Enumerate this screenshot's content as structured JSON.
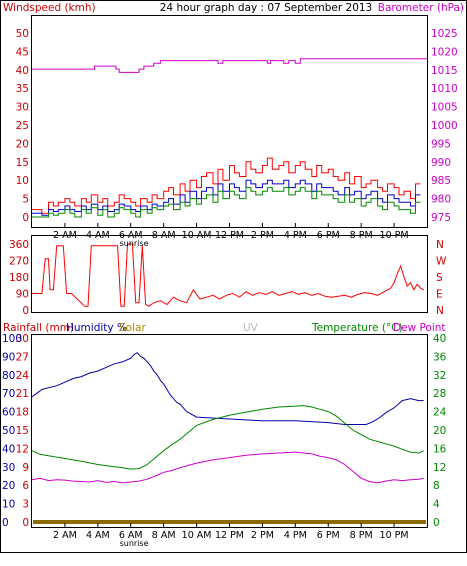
{
  "title": "24 hour graph day : 07 September 2013",
  "colors": {
    "frame": "#000000",
    "wind_axis": "#cc0000",
    "baro_axis": "#cc00cc",
    "gust": "#ff0000",
    "avg_wind": "#0000cc",
    "wind_green": "#008800",
    "rain": "#cc0000",
    "humidity": "#0000aa",
    "solar": "#aa8800",
    "uv": "#bbbbbb",
    "temperature": "#008800",
    "dewpoint": "#cc00cc",
    "rain_bar": "#8b6b00"
  },
  "chart_data": [
    {
      "type": "line",
      "title": "24 hour graph day : 07 September 2013",
      "ylabel_left": "Windspeed (kmh)",
      "ylabel_right": "Barometer (hPa)",
      "yticks_left": [
        "0",
        "5",
        "10",
        "15",
        "20",
        "25",
        "30",
        "35",
        "40",
        "45",
        "50"
      ],
      "yticks_right": [
        "975",
        "980",
        "985",
        "990",
        "995",
        "1000",
        "1005",
        "1010",
        "1015",
        "1020",
        "1025"
      ],
      "ylim_left": [
        0,
        50
      ],
      "ylim_right": [
        975,
        1025
      ],
      "xticks": [
        "2 AM",
        "4 AM",
        "6 AM",
        "8 AM",
        "10 AM",
        "12 PM",
        "2 PM",
        "4 PM",
        "6 PM",
        "8 PM",
        "10 PM"
      ],
      "x_annotation": "sunrise",
      "series": [
        {
          "axis": "right",
          "step": true,
          "x": [
            0,
            3.6,
            3.8,
            5.1,
            5.3,
            6.5,
            6.8,
            7.4,
            7.8,
            11.3,
            11.6,
            14.3,
            14.5,
            15.3,
            15.6,
            16,
            16.3,
            23.8
          ],
          "values": [
            1015.2,
            1015.2,
            1016,
            1015.2,
            1014.3,
            1015.2,
            1016,
            1016.8,
            1017.5,
            1016.8,
            1017.5,
            1016.8,
            1017.5,
            1016.8,
            1017.5,
            1016.8,
            1018,
            1018
          ]
        },
        {
          "name": "",
          "axis": "left",
          "step": true,
          "x": [
            0,
            0.6,
            1,
            1.3,
            1.6,
            2,
            2.3,
            2.6,
            3,
            3.3,
            3.6,
            4,
            4.3,
            4.6,
            5,
            5.3,
            5.6,
            6,
            6.3,
            6.6,
            7,
            7.3,
            7.6,
            8,
            8.3,
            8.6,
            9,
            9.3,
            9.6,
            10,
            10.3,
            10.6,
            11,
            11.3,
            11.6,
            12,
            12.3,
            12.6,
            13,
            13.3,
            13.6,
            14,
            14.3,
            14.6,
            15,
            15.3,
            15.6,
            16,
            16.3,
            16.6,
            17,
            17.3,
            17.6,
            18,
            18.3,
            18.6,
            19,
            19.3,
            19.6,
            20,
            20.3,
            20.6,
            21,
            21.3,
            21.6,
            22,
            22.3,
            22.6,
            23,
            23.3
          ],
          "values": [
            2,
            1,
            4,
            3,
            4,
            5,
            4,
            3,
            5,
            4,
            6,
            4,
            5,
            3,
            4,
            6,
            5,
            4,
            3,
            5,
            4,
            6,
            5,
            7,
            8,
            6,
            9,
            7,
            10,
            8,
            11,
            12,
            9,
            13,
            10,
            14,
            12,
            11,
            15,
            13,
            12,
            14,
            16,
            13,
            14,
            15,
            12,
            14,
            15,
            13,
            11,
            14,
            12,
            13,
            11,
            10,
            12,
            9,
            11,
            8,
            9,
            10,
            8,
            7,
            9,
            8,
            6,
            7,
            5,
            9
          ]
        },
        {
          "name": "",
          "axis": "left",
          "step": true,
          "x": [
            0,
            0.6,
            1,
            1.3,
            1.6,
            2,
            2.3,
            2.6,
            3,
            3.3,
            3.6,
            4,
            4.3,
            4.6,
            5,
            5.3,
            5.6,
            6,
            6.3,
            6.6,
            7,
            7.3,
            7.6,
            8,
            8.3,
            8.6,
            9,
            9.3,
            9.6,
            10,
            10.3,
            10.6,
            11,
            11.3,
            11.6,
            12,
            12.3,
            12.6,
            13,
            13.3,
            13.6,
            14,
            14.3,
            14.6,
            15,
            15.3,
            15.6,
            16,
            16.3,
            16.6,
            17,
            17.3,
            17.6,
            18,
            18.3,
            18.6,
            19,
            19.3,
            19.6,
            20,
            20.3,
            20.6,
            21,
            21.3,
            21.6,
            22,
            22.3,
            22.6,
            23,
            23.3
          ],
          "values": [
            1,
            0.5,
            2,
            1.5,
            2,
            3,
            2,
            1.5,
            3,
            2,
            3.5,
            2,
            3,
            1.5,
            2,
            3.5,
            3,
            2,
            1.5,
            3,
            2,
            3.5,
            3,
            4,
            5,
            3.5,
            6,
            4,
            7,
            5,
            7,
            8,
            6,
            9,
            7,
            9,
            8,
            7,
            10,
            9,
            8,
            9,
            10,
            9,
            9,
            10,
            8,
            9,
            10,
            9,
            7,
            9,
            8,
            8,
            7,
            6,
            8,
            6,
            7,
            5,
            6,
            7,
            5,
            4,
            6,
            5,
            4,
            4,
            3,
            6
          ]
        },
        {
          "name": "",
          "axis": "left",
          "step": true,
          "x": [
            0,
            0.6,
            1,
            1.3,
            1.6,
            2,
            2.3,
            2.6,
            3,
            3.3,
            3.6,
            4,
            4.3,
            4.6,
            5,
            5.3,
            5.6,
            6,
            6.3,
            6.6,
            7,
            7.3,
            7.6,
            8,
            8.3,
            8.6,
            9,
            9.3,
            9.6,
            10,
            10.3,
            10.6,
            11,
            11.3,
            11.6,
            12,
            12.3,
            12.6,
            13,
            13.3,
            13.6,
            14,
            14.3,
            14.6,
            15,
            15.3,
            15.6,
            16,
            16.3,
            16.6,
            17,
            17.3,
            17.6,
            18,
            18.3,
            18.6,
            19,
            19.3,
            19.6,
            20,
            20.3,
            20.6,
            21,
            21.3,
            21.6,
            22,
            22.3,
            22.6,
            23,
            23.3
          ],
          "values": [
            0,
            0,
            1,
            0.5,
            1,
            2,
            1,
            0,
            2,
            1,
            2.5,
            0.5,
            2,
            0,
            1,
            2.5,
            2,
            1,
            0,
            2,
            1,
            2.5,
            2,
            3,
            3.5,
            2,
            4,
            3,
            5,
            3.5,
            5,
            6,
            4,
            7,
            5,
            7,
            6,
            5,
            8,
            7,
            6,
            7,
            8,
            7,
            7,
            8,
            6,
            7,
            8,
            7,
            5,
            7,
            6,
            6,
            5,
            4,
            6,
            4,
            5,
            3,
            4,
            5,
            3,
            2,
            4,
            3,
            2,
            2,
            1,
            4
          ]
        }
      ]
    },
    {
      "type": "line",
      "title": "",
      "yticks_left": [
        "0",
        "90",
        "180",
        "270",
        "360"
      ],
      "yticks_right": [
        "N",
        "E",
        "S",
        "W",
        "N"
      ],
      "ylim_left": [
        0,
        360
      ],
      "series": [
        {
          "name": "",
          "x": [
            0,
            0.6,
            0.8,
            1,
            1.1,
            1.3,
            1.5,
            1.9,
            2.1,
            2.4,
            3.2,
            3.4,
            3.6,
            3.8,
            4.1,
            5.2,
            5.4,
            5.6,
            5.8,
            6.1,
            6.3,
            6.5,
            6.7,
            6.9,
            7.1,
            7.4,
            7.8,
            8.2,
            8.6,
            9,
            9.4,
            9.8,
            10.2,
            10.6,
            11,
            11.4,
            11.8,
            12.2,
            12.6,
            13,
            13.4,
            13.8,
            14.2,
            14.6,
            15,
            15.4,
            15.8,
            16.2,
            16.6,
            17,
            17.4,
            17.8,
            18.2,
            18.6,
            19,
            19.4,
            19.8,
            20.2,
            20.6,
            21,
            21.4,
            21.8,
            22,
            22.2,
            22.4,
            22.6,
            22.8,
            23,
            23.2,
            23.4,
            23.6,
            23.8
          ],
          "values": [
            90,
            90,
            280,
            280,
            110,
            110,
            350,
            350,
            90,
            90,
            20,
            20,
            350,
            350,
            350,
            350,
            20,
            20,
            360,
            360,
            40,
            40,
            350,
            30,
            20,
            40,
            50,
            30,
            70,
            50,
            40,
            110,
            60,
            70,
            80,
            60,
            80,
            90,
            70,
            100,
            80,
            95,
            85,
            100,
            80,
            90,
            100,
            85,
            95,
            80,
            90,
            75,
            70,
            75,
            80,
            70,
            85,
            95,
            90,
            80,
            100,
            120,
            150,
            200,
            240,
            180,
            130,
            150,
            110,
            140,
            120,
            110
          ]
        }
      ]
    },
    {
      "type": "line",
      "title": "",
      "legend_labels": {
        "rain": "Rainfall (mm)",
        "humidity": "Humidity %",
        "solar": "Solar",
        "uv": "UV",
        "temperature": "Temperature (°C)",
        "dewpoint": "Dew Point"
      },
      "yticks_rain": [
        "0",
        "3",
        "6",
        "9",
        "12",
        "15",
        "18",
        "21",
        "24",
        "27",
        "30"
      ],
      "yticks_humidity": [
        "0",
        "10",
        "20",
        "30",
        "40",
        "50",
        "60",
        "70",
        "80",
        "90",
        "100"
      ],
      "yticks_temp": [
        "0",
        "4",
        "8",
        "12",
        "16",
        "20",
        "24",
        "28",
        "32",
        "36",
        "40"
      ],
      "ylim_humidity": [
        0,
        100
      ],
      "ylim_temp": [
        0,
        40
      ],
      "ylim_rain": [
        0,
        30
      ],
      "series": [
        {
          "name": "Humidity %",
          "axis": "humidity",
          "x": [
            0,
            0.3,
            0.6,
            1,
            1.5,
            2,
            2.5,
            3,
            3.5,
            4,
            4.5,
            5,
            5.5,
            6,
            6.2,
            6.4,
            6.6,
            6.8,
            7,
            7.2,
            7.4,
            7.6,
            7.8,
            8,
            8.2,
            8.4,
            8.6,
            8.8,
            9,
            9.2,
            9.4,
            10,
            12,
            14,
            16,
            18,
            19,
            20,
            20.3,
            20.6,
            21,
            21.3,
            21.6,
            22,
            22.5,
            23,
            23.5,
            23.8
          ],
          "values": [
            68,
            70,
            72,
            73,
            74,
            76,
            78,
            79,
            81,
            82,
            84,
            86,
            87,
            89,
            91,
            92,
            90,
            89,
            87,
            85,
            82,
            80,
            77,
            75,
            72,
            69,
            67,
            65,
            64,
            62,
            60,
            57,
            56,
            55,
            55,
            54,
            53,
            53,
            53,
            54,
            56,
            58,
            60,
            62,
            66,
            67,
            66,
            66
          ]
        },
        {
          "name": "Temperature (°C)",
          "axis": "temp",
          "x": [
            0,
            0.5,
            1,
            2,
            3,
            4,
            5,
            5.5,
            6,
            6.5,
            7,
            7.5,
            8,
            8.5,
            9,
            9.5,
            10,
            11,
            12,
            13,
            14,
            15,
            16,
            16.5,
            17,
            17.5,
            18,
            18.5,
            19,
            19.5,
            20,
            20.5,
            21,
            21.5,
            22,
            22.5,
            23,
            23.5,
            23.8
          ],
          "values": [
            15.5,
            14.7,
            14.4,
            13.8,
            13.2,
            12.5,
            12,
            11.8,
            11.5,
            11.6,
            12.5,
            14,
            15.5,
            16.8,
            18,
            19.5,
            21,
            22.3,
            23.2,
            23.9,
            24.5,
            25,
            25.2,
            25.3,
            25,
            24.5,
            24,
            23,
            21.5,
            20,
            19,
            18,
            17.5,
            17,
            16.5,
            15.8,
            15.2,
            15,
            15.5
          ]
        },
        {
          "name": "Dew Point",
          "axis": "temp",
          "x": [
            0,
            0.5,
            1,
            1.5,
            2,
            2.5,
            3,
            3.5,
            4,
            4.5,
            5,
            5.5,
            6,
            6.5,
            7,
            7.5,
            8,
            8.5,
            9,
            9.5,
            10,
            11,
            12,
            13,
            14,
            15,
            16,
            16.5,
            17,
            17.5,
            18,
            18.5,
            19,
            19.5,
            20,
            20.5,
            21,
            21.5,
            22,
            22.5,
            23,
            23.5,
            23.8
          ],
          "values": [
            9.2,
            9.5,
            9.0,
            9.2,
            9.1,
            8.9,
            8.8,
            8.7,
            9.0,
            8.6,
            8.8,
            8.5,
            8.7,
            8.9,
            9.3,
            10,
            10.8,
            11.2,
            11.8,
            12.3,
            12.8,
            13.5,
            14,
            14.5,
            14.8,
            15,
            15.2,
            15,
            14.8,
            14.3,
            14,
            13.5,
            12.5,
            11,
            9.5,
            8.8,
            8.5,
            8.9,
            9.2,
            9.0,
            9.2,
            9.3,
            9.5
          ]
        },
        {
          "name": "Rainfall (mm)",
          "axis": "rain",
          "x": [
            0,
            23.8
          ],
          "values": [
            0,
            0
          ]
        }
      ]
    }
  ]
}
